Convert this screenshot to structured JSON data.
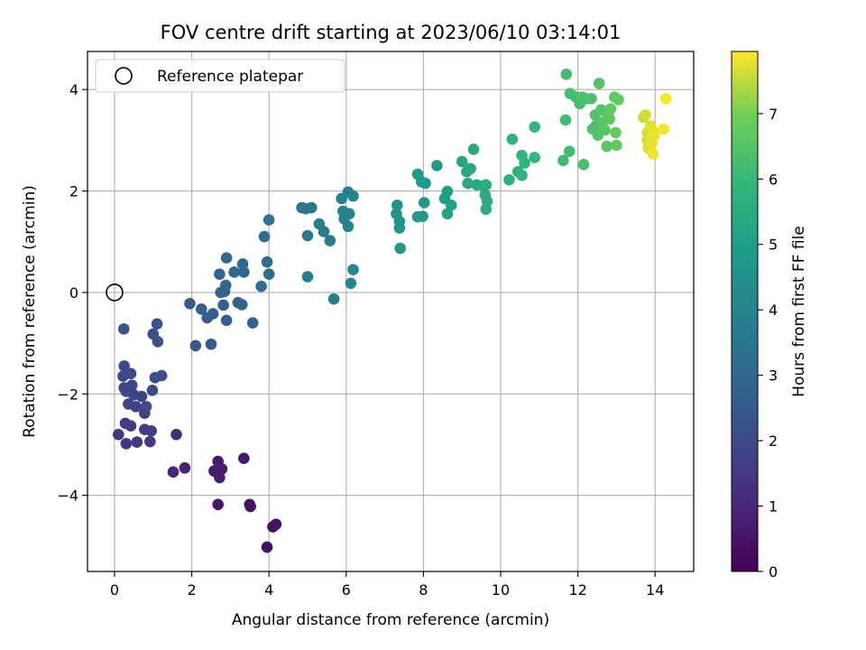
{
  "chart_data": {
    "type": "scatter",
    "title": "FOV centre drift starting at 2023/06/10 03:14:01",
    "xlabel": "Angular distance from reference (arcmin)",
    "ylabel": "Rotation from reference (arcmin)",
    "xlim": [
      -0.7,
      15
    ],
    "ylim": [
      -5.5,
      4.75
    ],
    "xticks": [
      0,
      2,
      4,
      6,
      8,
      10,
      12,
      14
    ],
    "yticks": [
      -4,
      -2,
      0,
      2,
      4
    ],
    "grid": true,
    "legend": {
      "placement": "upper-left",
      "entries": [
        "Reference platepar"
      ]
    },
    "reference_point": {
      "x": 0,
      "y": 0,
      "label": "Reference platepar"
    },
    "colorbar": {
      "label": "Hours from first FF file",
      "colormap": "viridis",
      "range": [
        0,
        7.95
      ],
      "ticks": [
        0,
        1,
        2,
        3,
        4,
        5,
        6,
        7
      ]
    },
    "points": [
      {
        "x": 3.95,
        "y": -5.02,
        "h": 0.35
      },
      {
        "x": 4.1,
        "y": -4.62,
        "h": 0.4
      },
      {
        "x": 4.18,
        "y": -4.57,
        "h": 0.42
      },
      {
        "x": 3.5,
        "y": -4.18,
        "h": 0.5
      },
      {
        "x": 3.52,
        "y": -4.22,
        "h": 0.52
      },
      {
        "x": 2.68,
        "y": -4.18,
        "h": 0.55
      },
      {
        "x": 3.35,
        "y": -3.27,
        "h": 0.6
      },
      {
        "x": 2.68,
        "y": -3.33,
        "h": 0.65
      },
      {
        "x": 2.58,
        "y": -3.52,
        "h": 0.7
      },
      {
        "x": 2.78,
        "y": -3.48,
        "h": 0.72
      },
      {
        "x": 2.72,
        "y": -3.65,
        "h": 0.75
      },
      {
        "x": 1.82,
        "y": -3.46,
        "h": 0.9
      },
      {
        "x": 1.52,
        "y": -3.54,
        "h": 0.95
      },
      {
        "x": 1.6,
        "y": -2.8,
        "h": 1.1
      },
      {
        "x": 0.1,
        "y": -2.8,
        "h": 1.4
      },
      {
        "x": 0.3,
        "y": -2.98,
        "h": 1.45
      },
      {
        "x": 0.58,
        "y": -2.95,
        "h": 1.5
      },
      {
        "x": 0.92,
        "y": -2.94,
        "h": 1.55
      },
      {
        "x": 0.28,
        "y": -2.58,
        "h": 1.6
      },
      {
        "x": 0.42,
        "y": -2.63,
        "h": 1.62
      },
      {
        "x": 0.78,
        "y": -2.7,
        "h": 1.65
      },
      {
        "x": 0.95,
        "y": -2.73,
        "h": 1.68
      },
      {
        "x": 0.78,
        "y": -2.38,
        "h": 1.72
      },
      {
        "x": 0.55,
        "y": -2.25,
        "h": 1.75
      },
      {
        "x": 0.36,
        "y": -2.2,
        "h": 1.78
      },
      {
        "x": 0.7,
        "y": -2.05,
        "h": 1.8
      },
      {
        "x": 0.5,
        "y": -2.02,
        "h": 1.82
      },
      {
        "x": 0.25,
        "y": -1.88,
        "h": 1.85
      },
      {
        "x": 0.45,
        "y": -1.83,
        "h": 1.88
      },
      {
        "x": 0.3,
        "y": -1.95,
        "h": 1.9
      },
      {
        "x": 0.22,
        "y": -1.65,
        "h": 1.95
      },
      {
        "x": 0.42,
        "y": -1.6,
        "h": 1.97
      },
      {
        "x": 0.25,
        "y": -1.45,
        "h": 2.0
      },
      {
        "x": 0.82,
        "y": -2.25,
        "h": 2.02
      },
      {
        "x": 0.98,
        "y": -1.93,
        "h": 2.05
      },
      {
        "x": 1.05,
        "y": -1.68,
        "h": 2.1
      },
      {
        "x": 1.22,
        "y": -1.64,
        "h": 2.12
      },
      {
        "x": 1.0,
        "y": -0.82,
        "h": 2.2
      },
      {
        "x": 1.12,
        "y": -0.97,
        "h": 2.22
      },
      {
        "x": 1.1,
        "y": -0.62,
        "h": 2.25
      },
      {
        "x": 0.24,
        "y": -0.72,
        "h": 2.3
      },
      {
        "x": 2.1,
        "y": -1.05,
        "h": 2.45
      },
      {
        "x": 2.5,
        "y": -1.02,
        "h": 2.5
      },
      {
        "x": 1.95,
        "y": -0.22,
        "h": 2.6
      },
      {
        "x": 2.25,
        "y": -0.33,
        "h": 2.62
      },
      {
        "x": 2.4,
        "y": -0.5,
        "h": 2.65
      },
      {
        "x": 2.55,
        "y": -0.42,
        "h": 2.68
      },
      {
        "x": 2.9,
        "y": -0.55,
        "h": 2.7
      },
      {
        "x": 2.82,
        "y": -0.25,
        "h": 2.72
      },
      {
        "x": 2.75,
        "y": 0.0,
        "h": 2.75
      },
      {
        "x": 2.85,
        "y": 0.02,
        "h": 2.78
      },
      {
        "x": 3.2,
        "y": -0.2,
        "h": 2.8
      },
      {
        "x": 3.3,
        "y": -0.24,
        "h": 2.82
      },
      {
        "x": 3.58,
        "y": -0.6,
        "h": 2.85
      },
      {
        "x": 2.88,
        "y": 0.14,
        "h": 2.9
      },
      {
        "x": 2.72,
        "y": 0.36,
        "h": 2.95
      },
      {
        "x": 3.1,
        "y": 0.4,
        "h": 3.0
      },
      {
        "x": 3.35,
        "y": 0.4,
        "h": 3.02
      },
      {
        "x": 3.32,
        "y": 0.56,
        "h": 3.05
      },
      {
        "x": 2.9,
        "y": 0.68,
        "h": 3.1
      },
      {
        "x": 3.8,
        "y": 0.12,
        "h": 3.15
      },
      {
        "x": 3.95,
        "y": 0.6,
        "h": 3.2
      },
      {
        "x": 4.0,
        "y": 0.36,
        "h": 3.22
      },
      {
        "x": 3.88,
        "y": 1.1,
        "h": 3.3
      },
      {
        "x": 4.0,
        "y": 1.43,
        "h": 3.35
      },
      {
        "x": 4.85,
        "y": 1.67,
        "h": 3.55
      },
      {
        "x": 4.95,
        "y": 1.65,
        "h": 3.58
      },
      {
        "x": 5.1,
        "y": 1.67,
        "h": 3.6
      },
      {
        "x": 5.0,
        "y": 1.12,
        "h": 3.65
      },
      {
        "x": 5.3,
        "y": 1.35,
        "h": 3.7
      },
      {
        "x": 5.42,
        "y": 1.2,
        "h": 3.72
      },
      {
        "x": 5.58,
        "y": 1.02,
        "h": 3.75
      },
      {
        "x": 5.0,
        "y": 0.31,
        "h": 3.8
      },
      {
        "x": 5.68,
        "y": -0.13,
        "h": 3.85
      },
      {
        "x": 5.88,
        "y": 1.85,
        "h": 3.9
      },
      {
        "x": 5.92,
        "y": 1.6,
        "h": 3.92
      },
      {
        "x": 6.05,
        "y": 1.98,
        "h": 3.95
      },
      {
        "x": 6.18,
        "y": 1.9,
        "h": 3.97
      },
      {
        "x": 5.95,
        "y": 1.45,
        "h": 4.0
      },
      {
        "x": 6.08,
        "y": 1.55,
        "h": 4.02
      },
      {
        "x": 6.05,
        "y": 1.3,
        "h": 4.05
      },
      {
        "x": 6.18,
        "y": 0.45,
        "h": 4.1
      },
      {
        "x": 6.12,
        "y": 0.18,
        "h": 4.12
      },
      {
        "x": 7.32,
        "y": 1.72,
        "h": 4.6
      },
      {
        "x": 7.3,
        "y": 1.55,
        "h": 4.62
      },
      {
        "x": 7.38,
        "y": 1.4,
        "h": 4.65
      },
      {
        "x": 7.38,
        "y": 1.27,
        "h": 4.68
      },
      {
        "x": 7.4,
        "y": 0.87,
        "h": 4.7
      },
      {
        "x": 7.85,
        "y": 1.49,
        "h": 4.75
      },
      {
        "x": 7.98,
        "y": 1.5,
        "h": 4.78
      },
      {
        "x": 8.02,
        "y": 1.77,
        "h": 4.8
      },
      {
        "x": 7.85,
        "y": 2.33,
        "h": 4.85
      },
      {
        "x": 7.95,
        "y": 2.18,
        "h": 4.88
      },
      {
        "x": 8.05,
        "y": 2.15,
        "h": 4.9
      },
      {
        "x": 8.35,
        "y": 2.5,
        "h": 4.95
      },
      {
        "x": 8.55,
        "y": 1.85,
        "h": 5.0
      },
      {
        "x": 8.62,
        "y": 1.99,
        "h": 5.02
      },
      {
        "x": 8.72,
        "y": 1.72,
        "h": 5.05
      },
      {
        "x": 8.62,
        "y": 1.55,
        "h": 5.08
      },
      {
        "x": 9.0,
        "y": 2.58,
        "h": 5.3
      },
      {
        "x": 9.12,
        "y": 2.38,
        "h": 5.32
      },
      {
        "x": 9.22,
        "y": 2.44,
        "h": 5.35
      },
      {
        "x": 9.15,
        "y": 2.15,
        "h": 5.38
      },
      {
        "x": 9.3,
        "y": 2.82,
        "h": 5.4
      },
      {
        "x": 9.38,
        "y": 2.12,
        "h": 5.42
      },
      {
        "x": 9.55,
        "y": 2.1,
        "h": 5.45
      },
      {
        "x": 9.62,
        "y": 2.12,
        "h": 5.48
      },
      {
        "x": 9.6,
        "y": 1.92,
        "h": 5.5
      },
      {
        "x": 9.65,
        "y": 1.8,
        "h": 5.52
      },
      {
        "x": 9.62,
        "y": 1.64,
        "h": 5.55
      },
      {
        "x": 10.22,
        "y": 2.22,
        "h": 5.7
      },
      {
        "x": 10.3,
        "y": 3.02,
        "h": 5.75
      },
      {
        "x": 10.45,
        "y": 2.38,
        "h": 5.78
      },
      {
        "x": 10.55,
        "y": 2.31,
        "h": 5.8
      },
      {
        "x": 10.55,
        "y": 2.7,
        "h": 5.82
      },
      {
        "x": 10.62,
        "y": 2.55,
        "h": 5.85
      },
      {
        "x": 10.88,
        "y": 3.26,
        "h": 5.9
      },
      {
        "x": 10.88,
        "y": 2.66,
        "h": 5.92
      },
      {
        "x": 11.62,
        "y": 2.6,
        "h": 6.1
      },
      {
        "x": 11.68,
        "y": 3.4,
        "h": 6.15
      },
      {
        "x": 11.78,
        "y": 2.78,
        "h": 6.18
      },
      {
        "x": 11.7,
        "y": 4.3,
        "h": 6.2
      },
      {
        "x": 11.8,
        "y": 3.92,
        "h": 6.22
      },
      {
        "x": 11.95,
        "y": 3.85,
        "h": 6.25
      },
      {
        "x": 12.05,
        "y": 3.72,
        "h": 6.28
      },
      {
        "x": 12.15,
        "y": 2.52,
        "h": 6.3
      },
      {
        "x": 12.12,
        "y": 3.85,
        "h": 6.32
      },
      {
        "x": 12.22,
        "y": 3.82,
        "h": 6.35
      },
      {
        "x": 12.35,
        "y": 3.82,
        "h": 6.38
      },
      {
        "x": 12.38,
        "y": 3.22,
        "h": 6.4
      },
      {
        "x": 12.45,
        "y": 3.5,
        "h": 6.42
      },
      {
        "x": 12.48,
        "y": 3.3,
        "h": 6.45
      },
      {
        "x": 12.52,
        "y": 3.1,
        "h": 6.48
      },
      {
        "x": 12.55,
        "y": 4.12,
        "h": 6.5
      },
      {
        "x": 12.6,
        "y": 3.6,
        "h": 6.52
      },
      {
        "x": 12.62,
        "y": 3.35,
        "h": 6.55
      },
      {
        "x": 12.7,
        "y": 3.2,
        "h": 6.58
      },
      {
        "x": 12.75,
        "y": 2.88,
        "h": 6.6
      },
      {
        "x": 12.78,
        "y": 3.5,
        "h": 6.62
      },
      {
        "x": 12.82,
        "y": 3.42,
        "h": 6.65
      },
      {
        "x": 12.85,
        "y": 3.62,
        "h": 6.68
      },
      {
        "x": 12.95,
        "y": 3.85,
        "h": 6.7
      },
      {
        "x": 12.98,
        "y": 3.15,
        "h": 6.72
      },
      {
        "x": 13.0,
        "y": 2.9,
        "h": 6.75
      },
      {
        "x": 13.05,
        "y": 3.8,
        "h": 6.78
      },
      {
        "x": 13.7,
        "y": 3.45,
        "h": 7.6
      },
      {
        "x": 13.75,
        "y": 3.5,
        "h": 7.62
      },
      {
        "x": 13.8,
        "y": 3.15,
        "h": 7.65
      },
      {
        "x": 13.8,
        "y": 3.0,
        "h": 7.68
      },
      {
        "x": 13.82,
        "y": 2.85,
        "h": 7.7
      },
      {
        "x": 13.88,
        "y": 3.28,
        "h": 7.72
      },
      {
        "x": 13.9,
        "y": 3.05,
        "h": 7.75
      },
      {
        "x": 13.92,
        "y": 2.95,
        "h": 7.78
      },
      {
        "x": 13.95,
        "y": 3.18,
        "h": 7.8
      },
      {
        "x": 13.98,
        "y": 3.1,
        "h": 7.82
      },
      {
        "x": 13.95,
        "y": 2.73,
        "h": 7.85
      },
      {
        "x": 14.22,
        "y": 3.22,
        "h": 7.88
      },
      {
        "x": 14.28,
        "y": 3.82,
        "h": 7.9
      }
    ]
  }
}
